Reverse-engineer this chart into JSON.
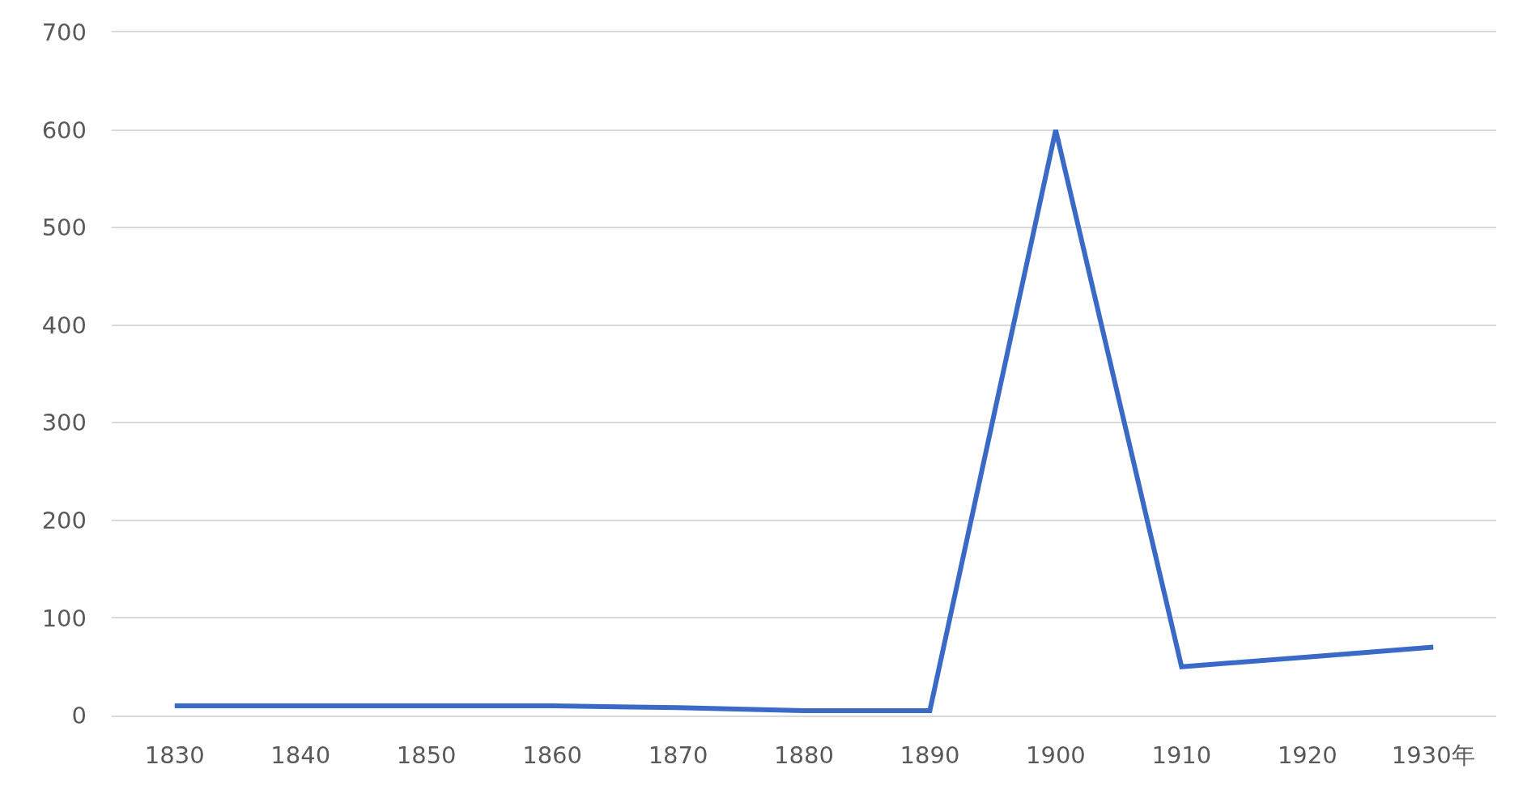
{
  "chart_data": {
    "type": "line",
    "categories": [
      "1830",
      "1840",
      "1850",
      "1860",
      "1870",
      "1880",
      "1890",
      "1900",
      "1910",
      "1920",
      "1930年"
    ],
    "series": [
      {
        "color": "#3a69c6",
        "values": [
          10,
          10,
          10,
          10,
          8,
          5,
          5,
          600,
          50,
          60,
          70
        ]
      }
    ],
    "ylim": [
      0,
      700
    ],
    "yticks": [
      0,
      100,
      200,
      300,
      400,
      500,
      600,
      700
    ],
    "grid": "y",
    "marker": "none",
    "line_style": "solid"
  }
}
